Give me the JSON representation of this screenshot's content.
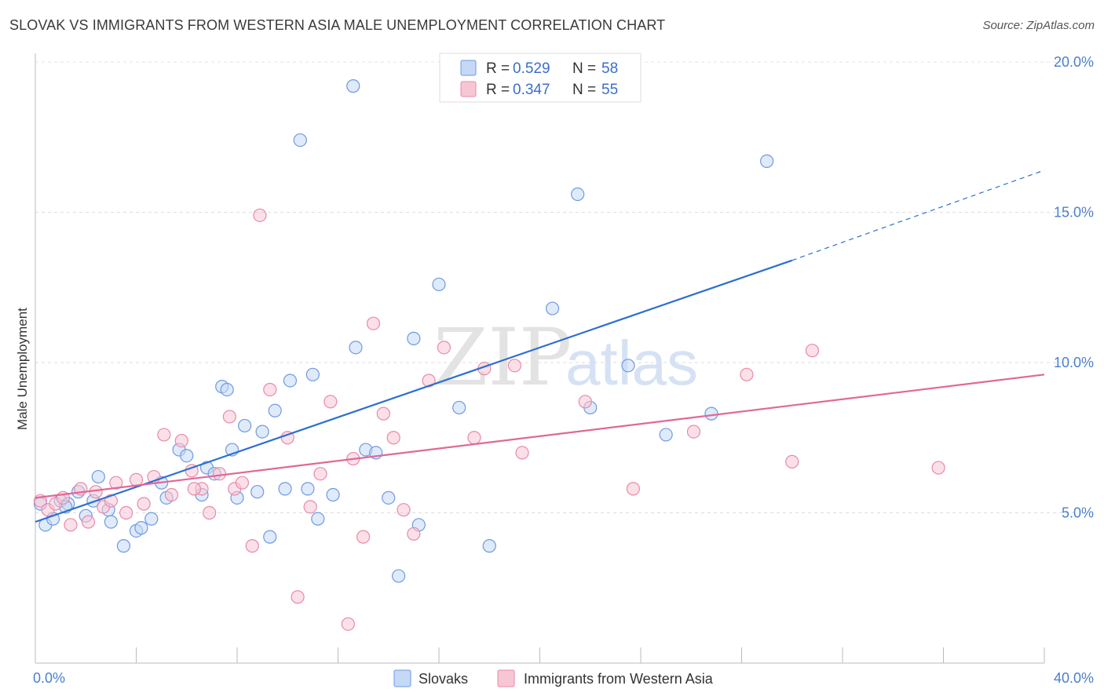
{
  "title": "SLOVAK VS IMMIGRANTS FROM WESTERN ASIA MALE UNEMPLOYMENT CORRELATION CHART",
  "source": "Source: ZipAtlas.com",
  "watermark": {
    "zip": "ZIP",
    "atlas": "atlas"
  },
  "chart_data": {
    "type": "scatter",
    "ylabel": "Male Unemployment",
    "xlim": [
      0,
      40
    ],
    "ylim": [
      0,
      20
    ],
    "x_tick_labels": [
      {
        "value": 0,
        "label": "0.0%"
      },
      {
        "value": 40,
        "label": "40.0%"
      }
    ],
    "y_tick_labels": [
      {
        "value": 5,
        "label": "5.0%"
      },
      {
        "value": 10,
        "label": "10.0%"
      },
      {
        "value": 15,
        "label": "15.0%"
      },
      {
        "value": 20,
        "label": "20.0%"
      }
    ],
    "grid": "horizontal dashed",
    "legend_position": "top-center",
    "series": [
      {
        "name": "Slovaks",
        "color": "#6f9ae0",
        "fill": "#c5d8f5",
        "r_label": "R = ",
        "r_value": "0.529",
        "n_label": "N = ",
        "n_value": "58",
        "trend": {
          "x0": 0,
          "y0": 4.7,
          "x1": 30,
          "y1": 13.4,
          "dash_x1": 40,
          "dash_y1": 16.4,
          "color": "#2d6fd2"
        },
        "points": [
          [
            0.2,
            5.3
          ],
          [
            0.4,
            4.6
          ],
          [
            0.7,
            4.8
          ],
          [
            1.0,
            5.4
          ],
          [
            1.3,
            5.3
          ],
          [
            1.7,
            5.7
          ],
          [
            2.0,
            4.9
          ],
          [
            2.3,
            5.4
          ],
          [
            2.9,
            5.1
          ],
          [
            3.5,
            3.9
          ],
          [
            4.0,
            4.4
          ],
          [
            4.6,
            4.8
          ],
          [
            5.2,
            5.5
          ],
          [
            5.7,
            7.1
          ],
          [
            6.0,
            6.9
          ],
          [
            6.6,
            5.6
          ],
          [
            6.8,
            6.5
          ],
          [
            7.1,
            6.3
          ],
          [
            7.4,
            9.2
          ],
          [
            7.6,
            9.1
          ],
          [
            7.8,
            7.1
          ],
          [
            8.3,
            7.9
          ],
          [
            8.8,
            5.7
          ],
          [
            9.3,
            4.2
          ],
          [
            9.5,
            8.4
          ],
          [
            9.9,
            5.8
          ],
          [
            10.1,
            9.4
          ],
          [
            10.5,
            17.4
          ],
          [
            10.8,
            5.8
          ],
          [
            11.2,
            4.8
          ],
          [
            11.8,
            5.6
          ],
          [
            12.6,
            19.2
          ],
          [
            12.7,
            10.5
          ],
          [
            13.1,
            7.1
          ],
          [
            13.5,
            7.0
          ],
          [
            14.0,
            5.5
          ],
          [
            14.4,
            2.9
          ],
          [
            15.0,
            10.8
          ],
          [
            15.2,
            4.6
          ],
          [
            16.0,
            12.6
          ],
          [
            16.8,
            8.5
          ],
          [
            18.0,
            3.9
          ],
          [
            20.5,
            11.8
          ],
          [
            21.5,
            15.6
          ],
          [
            22.0,
            8.5
          ],
          [
            23.5,
            9.9
          ],
          [
            25.0,
            7.6
          ],
          [
            26.8,
            8.3
          ],
          [
            29.0,
            16.7
          ],
          [
            4.2,
            4.5
          ],
          [
            3.0,
            4.7
          ],
          [
            1.2,
            5.2
          ],
          [
            5.0,
            6.0
          ],
          [
            8.0,
            5.5
          ],
          [
            2.5,
            6.2
          ],
          [
            9.0,
            7.7
          ],
          [
            11.0,
            9.6
          ],
          [
            17.5,
            19.8
          ]
        ]
      },
      {
        "name": "Immigrants from Western Asia",
        "color": "#e88aa8",
        "fill": "#f7c6d5",
        "r_label": "R = ",
        "r_value": "0.347",
        "n_label": "N = ",
        "n_value": "55",
        "trend": {
          "x0": 0,
          "y0": 5.5,
          "x1": 40,
          "y1": 9.6,
          "color": "#e06896"
        },
        "points": [
          [
            0.2,
            5.4
          ],
          [
            0.5,
            5.1
          ],
          [
            0.8,
            5.3
          ],
          [
            1.1,
            5.5
          ],
          [
            1.4,
            4.6
          ],
          [
            1.8,
            5.8
          ],
          [
            2.1,
            4.7
          ],
          [
            2.4,
            5.7
          ],
          [
            2.7,
            5.2
          ],
          [
            3.0,
            5.4
          ],
          [
            3.2,
            6.0
          ],
          [
            3.6,
            5.0
          ],
          [
            4.0,
            6.1
          ],
          [
            4.3,
            5.3
          ],
          [
            4.7,
            6.2
          ],
          [
            5.1,
            7.6
          ],
          [
            5.4,
            5.6
          ],
          [
            5.8,
            7.4
          ],
          [
            6.2,
            6.4
          ],
          [
            6.6,
            5.8
          ],
          [
            6.9,
            5.0
          ],
          [
            7.3,
            6.3
          ],
          [
            7.7,
            8.2
          ],
          [
            7.9,
            5.8
          ],
          [
            8.2,
            6.0
          ],
          [
            8.6,
            3.9
          ],
          [
            8.9,
            14.9
          ],
          [
            9.3,
            9.1
          ],
          [
            10.0,
            7.5
          ],
          [
            10.4,
            2.2
          ],
          [
            10.9,
            5.2
          ],
          [
            11.3,
            6.3
          ],
          [
            11.7,
            8.7
          ],
          [
            12.4,
            1.3
          ],
          [
            12.6,
            6.8
          ],
          [
            13.0,
            4.2
          ],
          [
            13.4,
            11.3
          ],
          [
            13.8,
            8.3
          ],
          [
            14.2,
            7.5
          ],
          [
            14.6,
            5.1
          ],
          [
            15.0,
            4.3
          ],
          [
            15.6,
            9.4
          ],
          [
            16.2,
            10.5
          ],
          [
            17.4,
            7.5
          ],
          [
            17.8,
            9.8
          ],
          [
            19.0,
            9.9
          ],
          [
            19.3,
            7.0
          ],
          [
            21.8,
            8.7
          ],
          [
            23.7,
            5.8
          ],
          [
            26.1,
            7.7
          ],
          [
            28.2,
            9.6
          ],
          [
            30.0,
            6.7
          ],
          [
            30.8,
            10.4
          ],
          [
            35.8,
            6.5
          ],
          [
            6.3,
            5.8
          ]
        ]
      }
    ]
  },
  "bottom_legend": [
    {
      "label": "Slovaks"
    },
    {
      "label": "Immigrants from Western Asia"
    }
  ]
}
